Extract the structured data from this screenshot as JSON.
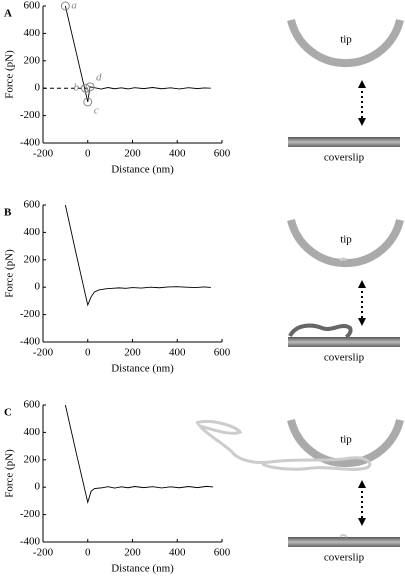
{
  "chart_data": [
    {
      "type": "line",
      "panel": "A",
      "xlabel": "Distance (nm)",
      "ylabel": "Force (pN)",
      "xlim": [
        -200,
        600
      ],
      "ylim": [
        -400,
        600
      ],
      "xticks": [
        -200,
        0,
        200,
        400,
        600
      ],
      "yticks": [
        600,
        400,
        200,
        0,
        -200,
        -400
      ],
      "hline": 0,
      "annotations": [
        {
          "label": "a",
          "x": -100,
          "y": 600
        },
        {
          "label": "b",
          "x": -10,
          "y": 0
        },
        {
          "label": "c",
          "x": 0,
          "y": -100
        },
        {
          "label": "d",
          "x": 10,
          "y": 10
        }
      ],
      "series": [
        {
          "color": "#000000",
          "x": [
            -100,
            -50,
            0,
            10,
            30,
            60,
            90,
            120,
            150,
            180,
            210,
            250,
            290,
            330,
            370,
            410,
            450,
            490,
            520,
            550
          ],
          "values": [
            600,
            250,
            -100,
            10,
            4,
            -6,
            5,
            -4,
            3,
            -5,
            4,
            -3,
            5,
            -4,
            3,
            -5,
            4,
            -3,
            2,
            0
          ]
        }
      ],
      "schematic_labels": [
        "tip",
        "coverslip"
      ]
    },
    {
      "type": "line",
      "panel": "B",
      "xlabel": "Distance (nm)",
      "ylabel": "Force (pN)",
      "xlim": [
        -200,
        600
      ],
      "ylim": [
        -400,
        600
      ],
      "xticks": [
        -200,
        0,
        200,
        400,
        600
      ],
      "yticks": [
        600,
        400,
        200,
        0,
        -200,
        -400
      ],
      "series": [
        {
          "color": "#000000",
          "x": [
            -100,
            -50,
            0,
            15,
            30,
            50,
            80,
            110,
            140,
            170,
            200,
            240,
            280,
            320,
            360,
            400,
            440,
            480,
            520,
            550
          ],
          "values": [
            600,
            230,
            -130,
            -70,
            -35,
            -20,
            -12,
            -8,
            -5,
            -8,
            -3,
            -6,
            0,
            -4,
            2,
            4,
            0,
            -3,
            2,
            -2
          ]
        }
      ],
      "schematic_labels": [
        "tip",
        "coverslip"
      ]
    },
    {
      "type": "line",
      "panel": "C",
      "xlabel": "Distance (nm)",
      "ylabel": "Force (pN)",
      "xlim": [
        -200,
        600
      ],
      "ylim": [
        -400,
        600
      ],
      "xticks": [
        -200,
        0,
        200,
        400,
        600
      ],
      "yticks": [
        600,
        400,
        200,
        0,
        -200,
        -400
      ],
      "series": [
        {
          "color": "#000000",
          "x": [
            -100,
            -50,
            0,
            15,
            30,
            60,
            90,
            120,
            150,
            180,
            210,
            250,
            290,
            330,
            370,
            410,
            450,
            490,
            530,
            560
          ],
          "values": [
            600,
            240,
            -110,
            -30,
            -10,
            -5,
            4,
            -6,
            3,
            -4,
            5,
            -3,
            4,
            -5,
            3,
            -4,
            5,
            -3,
            6,
            2
          ]
        }
      ],
      "schematic_labels": [
        "tip",
        "coverslip"
      ]
    }
  ]
}
